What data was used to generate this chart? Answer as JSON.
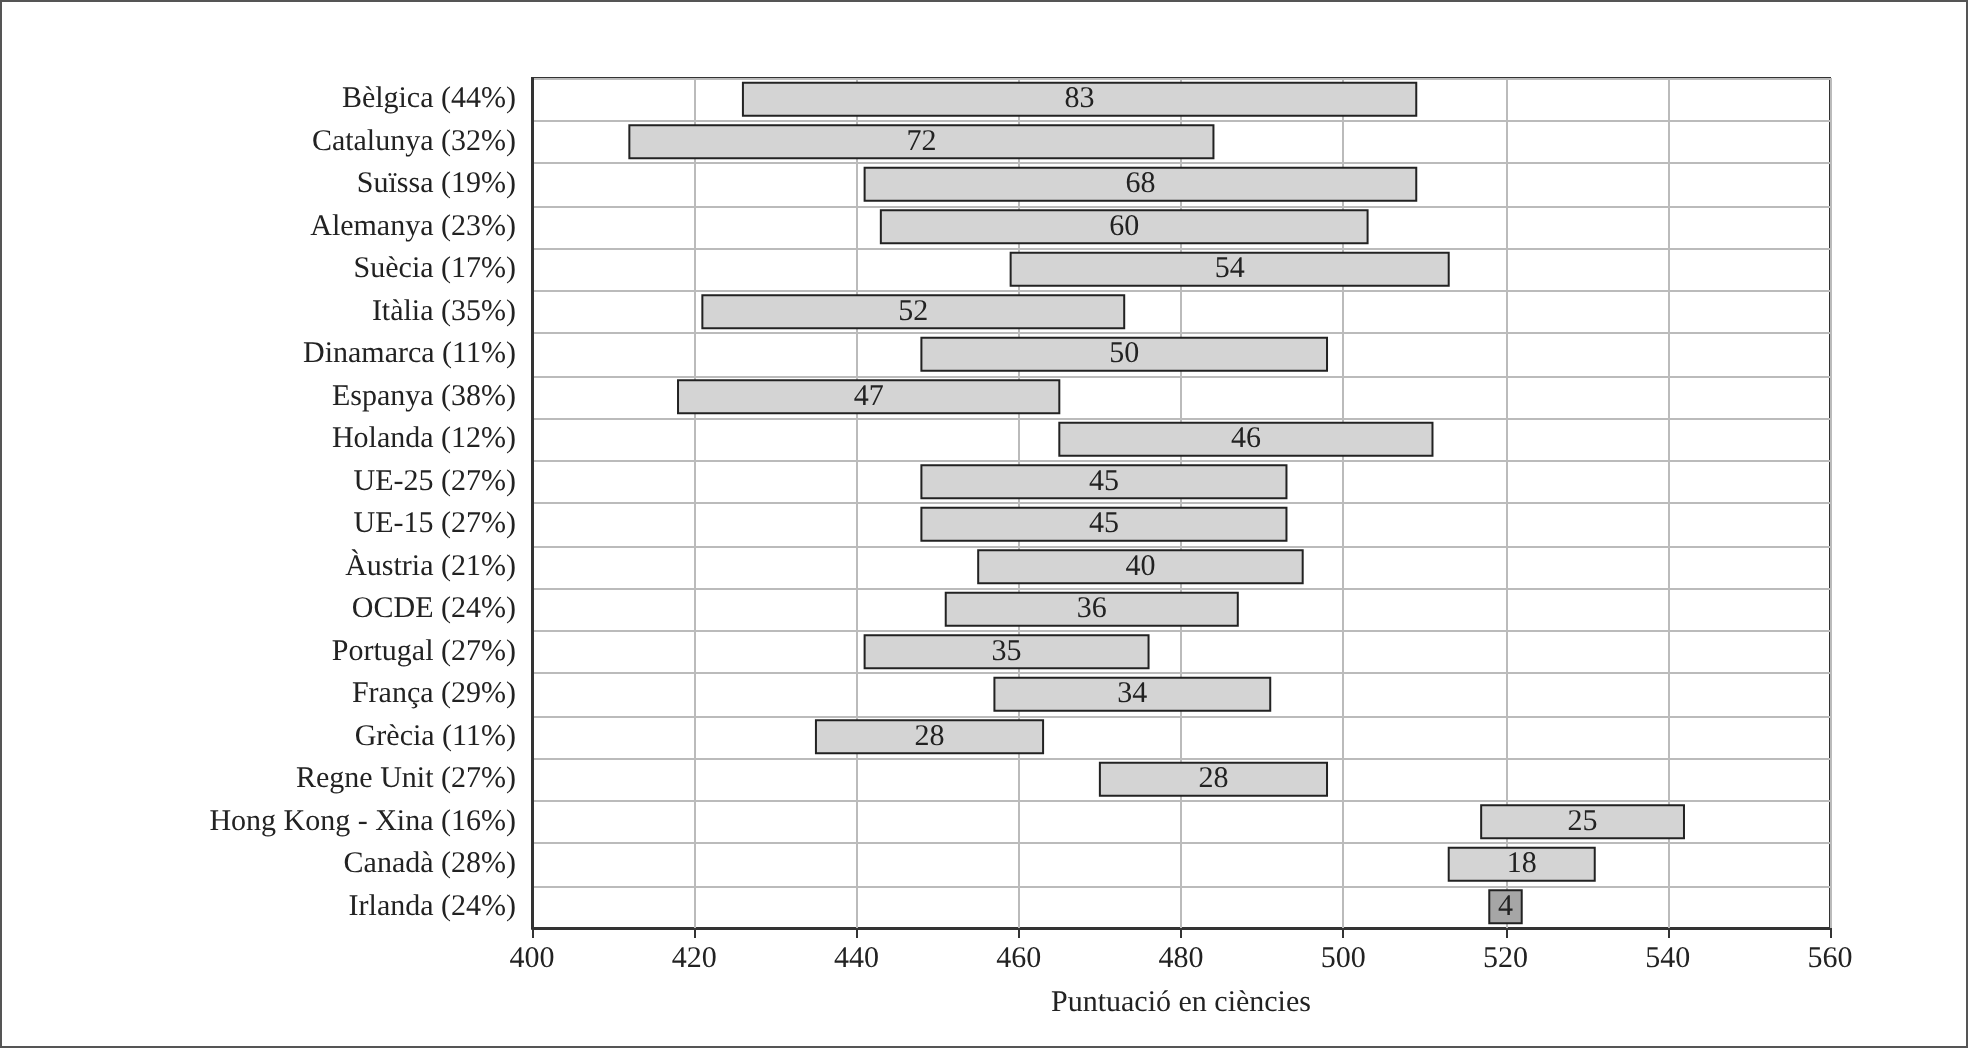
{
  "chart_data": {
    "type": "bar",
    "orientation": "horizontal",
    "xlabel": "Puntuació en ciències",
    "categories": [
      "Bèlgica (44%)",
      "Catalunya (32%)",
      "Suïssa (19%)",
      "Alemanya (23%)",
      "Suècia (17%)",
      "Itàlia (35%)",
      "Dinamarca (11%)",
      "Espanya (38%)",
      "Holanda (12%)",
      "UE-25 (27%)",
      "UE-15 (27%)",
      "Àustria (21%)",
      "OCDE (24%)",
      "Portugal (27%)",
      "França (29%)",
      "Grècia (11%)",
      "Regne Unit (27%)",
      "Hong Kong - Xina (16%)",
      "Canadà (28%)",
      "Irlanda (24%)"
    ],
    "values": [
      83,
      72,
      68,
      60,
      54,
      52,
      50,
      47,
      46,
      45,
      45,
      40,
      36,
      35,
      34,
      28,
      28,
      25,
      18,
      4
    ],
    "base": [
      426,
      412,
      441,
      443,
      459,
      421,
      448,
      418,
      465,
      448,
      448,
      455,
      451,
      441,
      457,
      435,
      470,
      517,
      513,
      518
    ],
    "colors": [
      "#d4d4d4",
      "#d4d4d4",
      "#d4d4d4",
      "#d4d4d4",
      "#d4d4d4",
      "#d4d4d4",
      "#d4d4d4",
      "#d4d4d4",
      "#d4d4d4",
      "#d4d4d4",
      "#d4d4d4",
      "#d4d4d4",
      "#d4d4d4",
      "#d4d4d4",
      "#d4d4d4",
      "#d4d4d4",
      "#d4d4d4",
      "#d4d4d4",
      "#d4d4d4",
      "#a6a6a6"
    ],
    "data_labels": true,
    "grid": true,
    "xlim": [
      400,
      560
    ],
    "xticks": [
      400,
      420,
      440,
      460,
      480,
      500,
      520,
      540,
      560
    ]
  }
}
